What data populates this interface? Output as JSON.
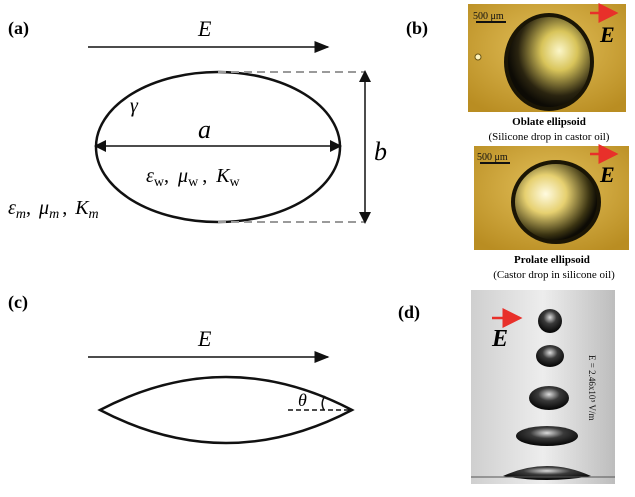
{
  "panel_a": {
    "label": "(a)",
    "field_label": "E",
    "gamma": "γ",
    "axis_a": "a",
    "axis_b": "b",
    "inner_eps": "ε",
    "inner_eps_sub": "w",
    "inner_mu": "μ",
    "inner_mu_sub": "w",
    "inner_K": "K",
    "inner_K_sub": "w",
    "outer_eps": "ε",
    "outer_eps_sub": "m",
    "outer_mu": "μ",
    "outer_mu_sub": "m",
    "outer_K": "K",
    "outer_K_sub": "m",
    "comma": ","
  },
  "panel_b": {
    "label": "(b)",
    "photo1": {
      "scale": "500 μm",
      "field": "E",
      "title": "Oblate ellipsoid",
      "caption": "(Silicone drop in castor oil)"
    },
    "photo2": {
      "scale": "500 μm",
      "field": "E",
      "title": "Prolate ellipsoid",
      "caption": "(Castor drop in silicone oil)"
    }
  },
  "panel_c": {
    "label": "(c)",
    "field_label": "E",
    "theta": "θ"
  },
  "panel_d": {
    "label": "(d)",
    "field": "E",
    "side_text": "E = 2.46x10⁵ V/m"
  },
  "colors": {
    "field_arrow_red": "#e8302a",
    "photo_bg": "#c9a13a",
    "dashed_gray": "#9a9a9a"
  }
}
